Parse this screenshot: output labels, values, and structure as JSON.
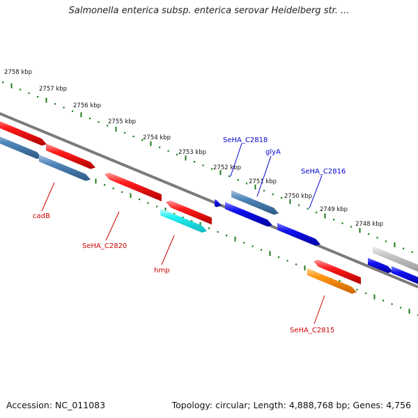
{
  "title": "Salmonella enterica subsp. enterica serovar Heidelberg str. ...",
  "footer": {
    "accession": "Accession: NC_011083",
    "summary": "Topology: circular; Length: 4,888,768 bp; Genes: 4,756"
  },
  "colors": {
    "backbone": "#808080",
    "ticks": "#1a7a1a",
    "red_label": "#cc0000",
    "blue_label": "#0000cc"
  },
  "ruler_labels": [
    "2758 kbp",
    "2757 kbp",
    "2756 kbp",
    "2755 kbp",
    "2754 kbp",
    "2753 kbp",
    "2752 kbp",
    "2751 kbp",
    "2750 kbp",
    "2749 kbp",
    "2748 kbp"
  ],
  "gene_labels": [
    {
      "id": "cadB",
      "text": "cadB",
      "color": "red"
    },
    {
      "id": "SeHA_C2820",
      "text": "SeHA_C2820",
      "color": "red"
    },
    {
      "id": "hmp",
      "text": "hmp",
      "color": "red"
    },
    {
      "id": "SeHA_C2815",
      "text": "SeHA_C2815",
      "color": "red"
    },
    {
      "id": "SeHA_C2818",
      "text": "SeHA_C2818",
      "color": "blue"
    },
    {
      "id": "glyA",
      "text": "glyA",
      "color": "blue"
    },
    {
      "id": "SeHA_C2816",
      "text": "SeHA_C2816",
      "color": "blue"
    }
  ]
}
